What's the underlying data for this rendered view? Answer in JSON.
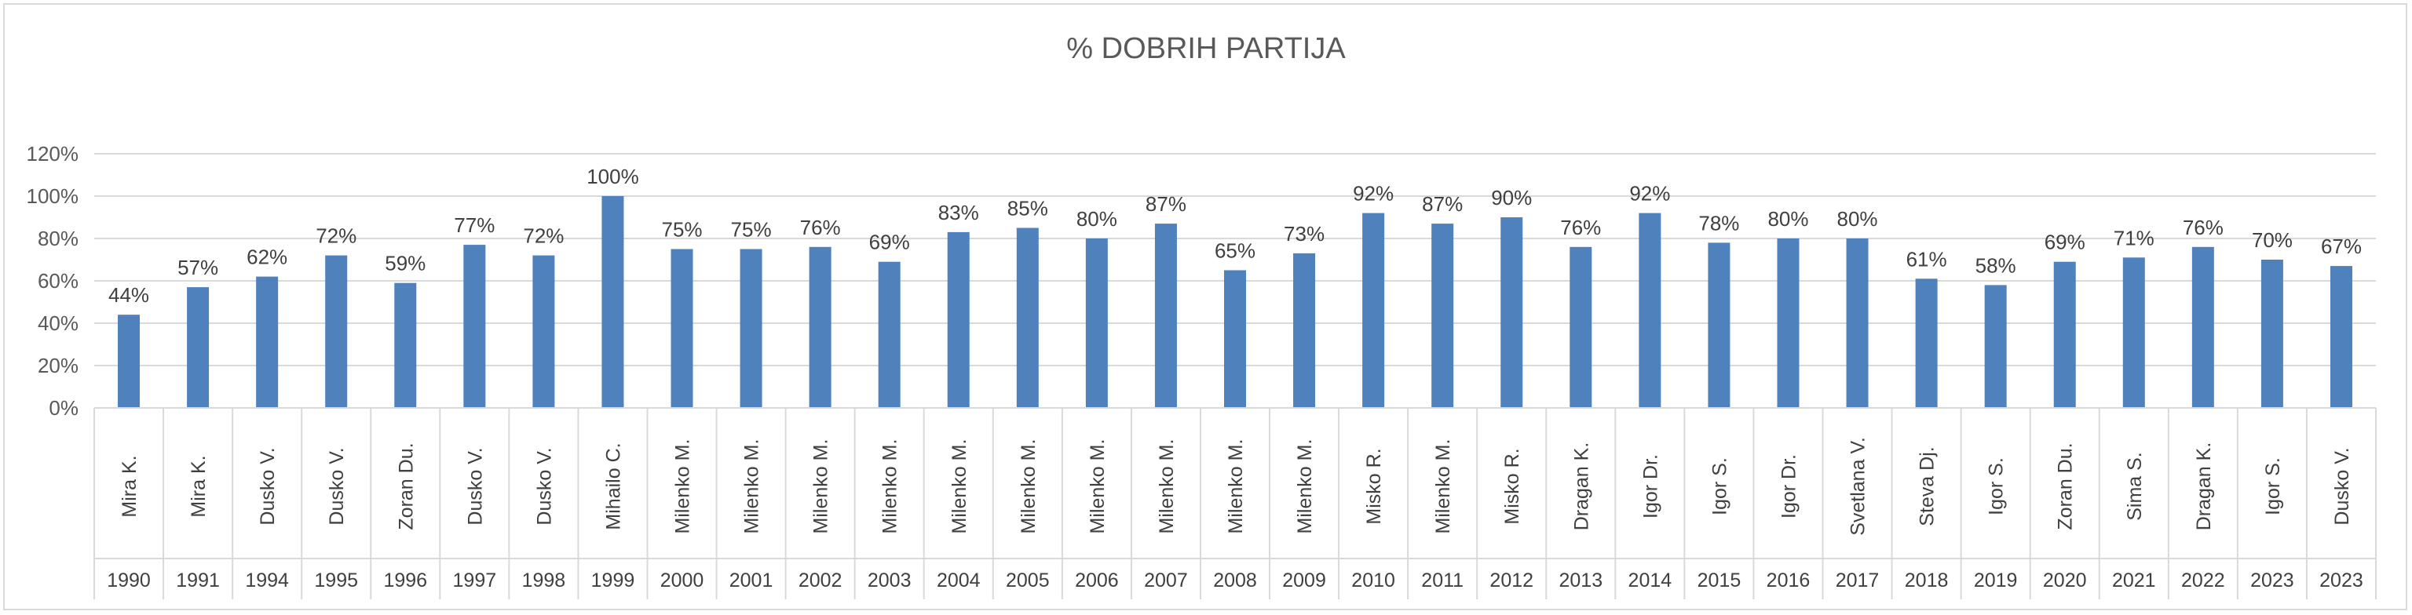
{
  "chart_data": {
    "type": "bar",
    "title": "% DOBRIH PARTIJA",
    "xlabel": "",
    "ylabel": "",
    "ylim": [
      0,
      120
    ],
    "y_ticks": [
      "0%",
      "20%",
      "40%",
      "60%",
      "80%",
      "100%",
      "120%"
    ],
    "grid": true,
    "legend": "none",
    "bar_color": "#4f81bd",
    "categories": [
      {
        "name": "Mira K.",
        "year": "1990"
      },
      {
        "name": "Mira K.",
        "year": "1991"
      },
      {
        "name": "Dusko V.",
        "year": "1994"
      },
      {
        "name": "Dusko V.",
        "year": "1995"
      },
      {
        "name": "Zoran Du.",
        "year": "1996"
      },
      {
        "name": "Dusko V.",
        "year": "1997"
      },
      {
        "name": "Dusko V.",
        "year": "1998"
      },
      {
        "name": "Mihailo C.",
        "year": "1999"
      },
      {
        "name": "Milenko M.",
        "year": "2000"
      },
      {
        "name": "Milenko M.",
        "year": "2001"
      },
      {
        "name": "Milenko M.",
        "year": "2002"
      },
      {
        "name": "Milenko M.",
        "year": "2003"
      },
      {
        "name": "Milenko M.",
        "year": "2004"
      },
      {
        "name": "Milenko M.",
        "year": "2005"
      },
      {
        "name": "Milenko M.",
        "year": "2006"
      },
      {
        "name": "Milenko M.",
        "year": "2007"
      },
      {
        "name": "Milenko M.",
        "year": "2008"
      },
      {
        "name": "Milenko M.",
        "year": "2009"
      },
      {
        "name": "Misko R.",
        "year": "2010"
      },
      {
        "name": "Milenko M.",
        "year": "2011"
      },
      {
        "name": "Misko R.",
        "year": "2012"
      },
      {
        "name": "Dragan K.",
        "year": "2013"
      },
      {
        "name": "Igor Dr.",
        "year": "2014"
      },
      {
        "name": "Igor S.",
        "year": "2015"
      },
      {
        "name": "Igor Dr.",
        "year": "2016"
      },
      {
        "name": "Svetlana V.",
        "year": "2017"
      },
      {
        "name": "Steva Dj.",
        "year": "2018"
      },
      {
        "name": "Igor S.",
        "year": "2019"
      },
      {
        "name": "Zoran Du.",
        "year": "2020"
      },
      {
        "name": "Sima S.",
        "year": "2021"
      },
      {
        "name": "Dragan K.",
        "year": "2022"
      },
      {
        "name": "Igor S.",
        "year": "2023"
      },
      {
        "name": "Dusko V.",
        "year": "2023"
      }
    ],
    "values": [
      44,
      57,
      62,
      72,
      59,
      77,
      72,
      100,
      75,
      75,
      76,
      69,
      83,
      85,
      80,
      87,
      65,
      73,
      92,
      87,
      90,
      76,
      92,
      78,
      80,
      80,
      61,
      58,
      69,
      71,
      76,
      70,
      67
    ],
    "data_labels": [
      "44%",
      "57%",
      "62%",
      "72%",
      "59%",
      "77%",
      "72%",
      "100%",
      "75%",
      "75%",
      "76%",
      "69%",
      "83%",
      "85%",
      "80%",
      "87%",
      "65%",
      "73%",
      "92%",
      "87%",
      "90%",
      "76%",
      "92%",
      "78%",
      "80%",
      "80%",
      "61%",
      "58%",
      "69%",
      "71%",
      "76%",
      "70%",
      "67%"
    ]
  }
}
